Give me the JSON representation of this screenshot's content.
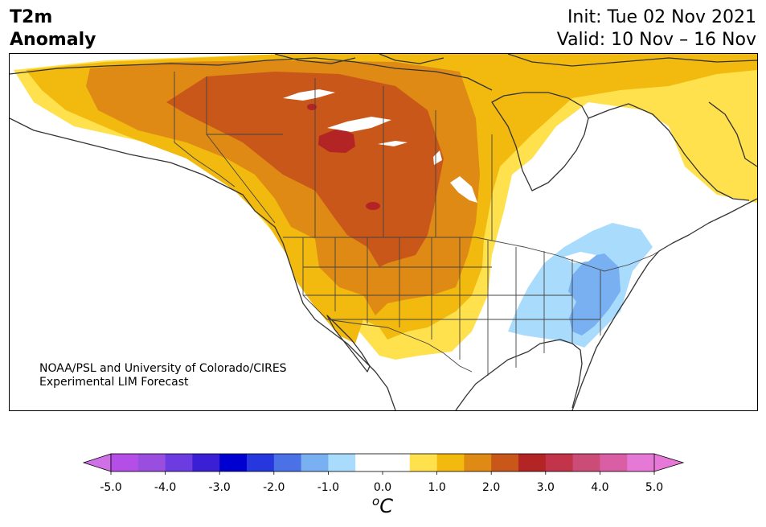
{
  "title": {
    "line1": "T2m",
    "line2": "Anomaly"
  },
  "forecast": {
    "init": "Init: Tue 02 Nov 2021",
    "valid": "Valid: 10 Nov – 16 Nov"
  },
  "credit": {
    "line1": "NOAA/PSL and University of Colorado/CIRES",
    "line2": "Experimental LIM Forecast"
  },
  "colorbar": {
    "unit_base": "o",
    "unit_symbol": "C",
    "min": -5.0,
    "max": 5.0,
    "bins": [
      {
        "from": -5.0,
        "to": -4.5,
        "color": "#b34ee6"
      },
      {
        "from": -4.5,
        "to": -4.0,
        "color": "#9a4ee0"
      },
      {
        "from": -4.0,
        "to": -3.5,
        "color": "#6c3ce0"
      },
      {
        "from": -3.5,
        "to": -3.0,
        "color": "#3a1fd4"
      },
      {
        "from": -3.0,
        "to": -2.5,
        "color": "#0000d0"
      },
      {
        "from": -2.5,
        "to": -2.0,
        "color": "#2637de"
      },
      {
        "from": -2.0,
        "to": -1.5,
        "color": "#4a72e6"
      },
      {
        "from": -1.5,
        "to": -1.0,
        "color": "#78b0f2"
      },
      {
        "from": -1.0,
        "to": -0.5,
        "color": "#a9dcfc"
      },
      {
        "from": -0.5,
        "to": 0.0,
        "color": "#ffffff"
      },
      {
        "from": 0.0,
        "to": 0.5,
        "color": "#ffffff"
      },
      {
        "from": 0.5,
        "to": 1.0,
        "color": "#ffe14d"
      },
      {
        "from": 1.0,
        "to": 1.5,
        "color": "#f2b90f"
      },
      {
        "from": 1.5,
        "to": 2.0,
        "color": "#de8a14"
      },
      {
        "from": 2.0,
        "to": 2.5,
        "color": "#c9571a"
      },
      {
        "from": 2.5,
        "to": 3.0,
        "color": "#b32424"
      },
      {
        "from": 3.0,
        "to": 3.5,
        "color": "#c2344a"
      },
      {
        "from": 3.5,
        "to": 4.0,
        "color": "#cc4c78"
      },
      {
        "from": 4.0,
        "to": 4.5,
        "color": "#d95ea3"
      },
      {
        "from": 4.5,
        "to": 5.0,
        "color": "#e678d6"
      }
    ],
    "below_color": "#d070e6",
    "above_color": "#e878d8",
    "ticks": [
      {
        "value": -5.0,
        "label": "-5.0"
      },
      {
        "value": -4.0,
        "label": "-4.0"
      },
      {
        "value": -3.0,
        "label": "-3.0"
      },
      {
        "value": -2.0,
        "label": "-2.0"
      },
      {
        "value": -1.0,
        "label": "-1.0"
      },
      {
        "value": 0.0,
        "label": "0.0"
      },
      {
        "value": 1.0,
        "label": "1.0"
      },
      {
        "value": 2.0,
        "label": "2.0"
      },
      {
        "value": 3.0,
        "label": "3.0"
      },
      {
        "value": 4.0,
        "label": "4.0"
      },
      {
        "value": 5.0,
        "label": "5.0"
      }
    ]
  },
  "map": {
    "region": "North America",
    "colors": {
      "warm1": "#ffe14d",
      "warm2": "#f2b90f",
      "warm3": "#de8a14",
      "warm4": "#c9571a",
      "warm5": "#b32424",
      "cool1": "#a9dcfc",
      "cool2": "#78b0f2",
      "coast": "#333333",
      "border": "#444444"
    }
  }
}
